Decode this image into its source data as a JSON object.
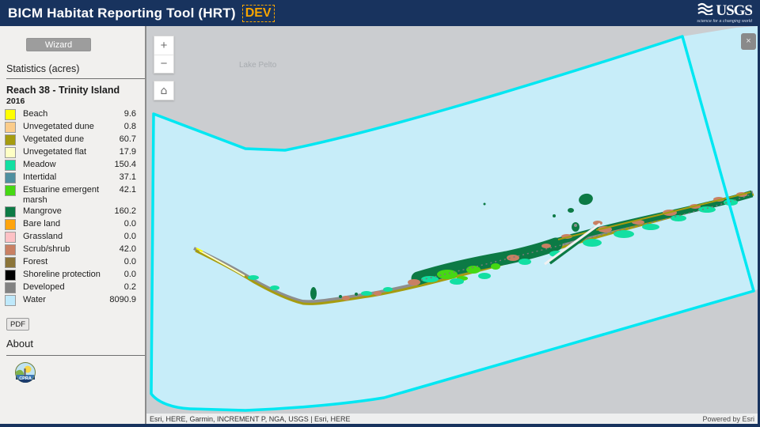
{
  "header": {
    "title": "BICM Habitat Reporting Tool (HRT)",
    "env_badge": "DEV",
    "logo": {
      "name": "USGS",
      "tagline": "science for a changing world"
    }
  },
  "sidebar": {
    "wizard_button": "Wizard",
    "stats_heading": "Statistics (acres)",
    "reach_title": "Reach 38 - Trinity Island",
    "year": "2016",
    "legend": [
      {
        "label": "Beach",
        "value": "9.6",
        "color": "#FFFF00"
      },
      {
        "label": "Unvegetated dune",
        "value": "0.8",
        "color": "#FBCC8A"
      },
      {
        "label": "Vegetated dune",
        "value": "60.7",
        "color": "#A69C0F"
      },
      {
        "label": "Unvegetated flat",
        "value": "17.9",
        "color": "#FEFFC5"
      },
      {
        "label": "Meadow",
        "value": "150.4",
        "color": "#12DFA2"
      },
      {
        "label": "Intertidal",
        "value": "37.1",
        "color": "#4F90A0"
      },
      {
        "label": "Estuarine emergent marsh",
        "value": "42.1",
        "color": "#46D813"
      },
      {
        "label": "Mangrove",
        "value": "160.2",
        "color": "#0C7A45"
      },
      {
        "label": "Bare land",
        "value": "0.0",
        "color": "#FFA40D"
      },
      {
        "label": "Grassland",
        "value": "0.0",
        "color": "#FDC1C5"
      },
      {
        "label": "Scrub/shrub",
        "value": "42.0",
        "color": "#C98063"
      },
      {
        "label": "Forest",
        "value": "0.0",
        "color": "#8B7439"
      },
      {
        "label": "Shoreline protection",
        "value": "0.0",
        "color": "#000000"
      },
      {
        "label": "Developed",
        "value": "0.2",
        "color": "#828282"
      },
      {
        "label": "Water",
        "value": "8090.9",
        "color": "#BFE9FB"
      }
    ],
    "pdf_button": "PDF",
    "about_link": "About",
    "cpra_logo_text": "CPRA"
  },
  "map": {
    "place_label": "Lake Pelto",
    "controls": {
      "zoom_in": "+",
      "zoom_out": "−",
      "home_icon": "⌂",
      "close_icon": "×"
    },
    "attribution": "Esri, HERE, Garmin, INCREMENT P, NGA, USGS | Esri, HERE",
    "powered_by": "Powered by Esri",
    "colors": {
      "boundary": "#00E7F2",
      "water_fill": "#C7EDF9",
      "basemap": "#CBCDD0",
      "header": "#18335E"
    }
  }
}
